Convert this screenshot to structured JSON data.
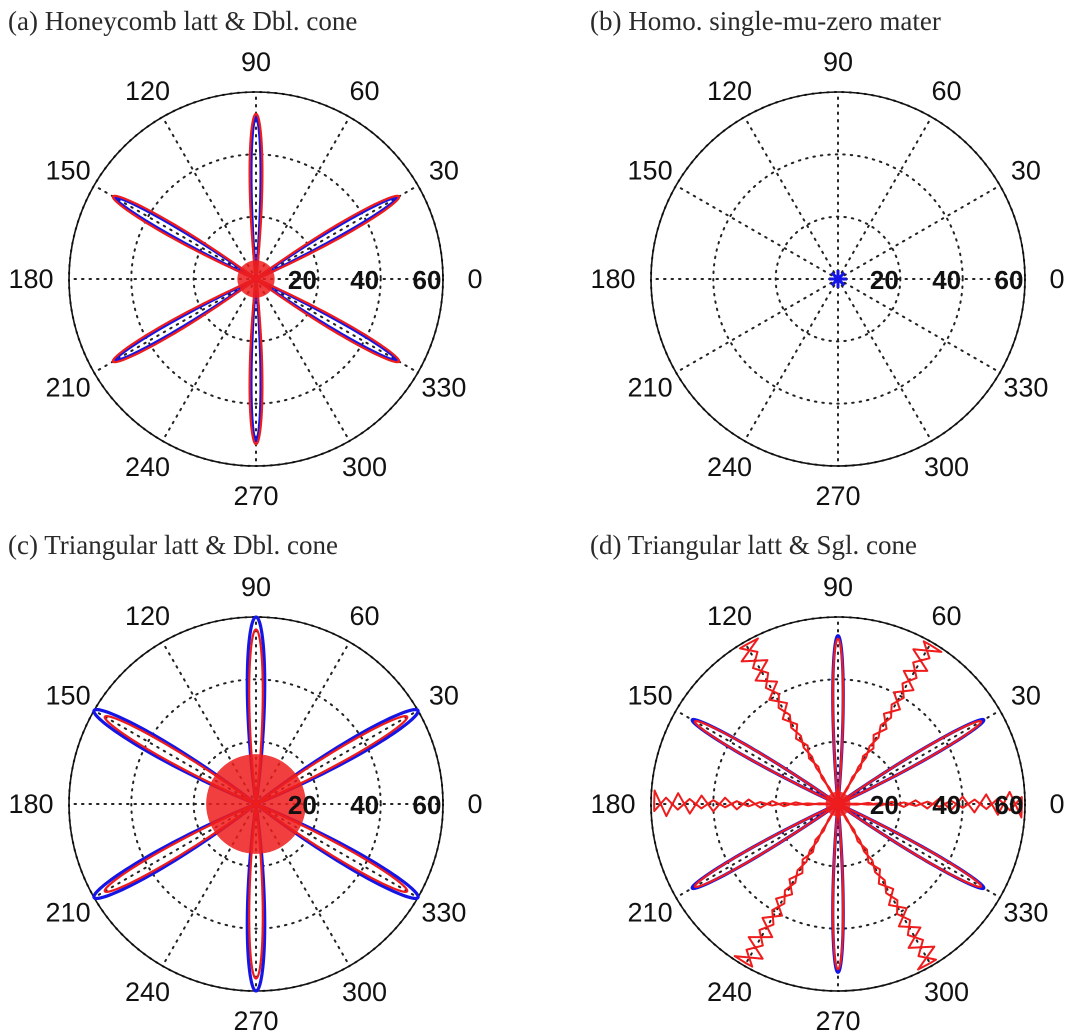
{
  "chart_data": [
    {
      "type": "polar",
      "title": "(a) Honeycomb latt & Dbl. cone",
      "angle_ticks": [
        "0",
        "30",
        "60",
        "90",
        "120",
        "150",
        "180",
        "210",
        "240",
        "270",
        "300",
        "330"
      ],
      "radial_ticks": [
        "20",
        "40",
        "60"
      ],
      "rmax": 60,
      "series": [
        {
          "color": "#1515e6",
          "lobe_angles": [
            30,
            90,
            150,
            210,
            270,
            330
          ],
          "peak": 52,
          "lobe_width_deg": 4
        },
        {
          "color": "#ee1c1c",
          "lobe_angles": [
            30,
            90,
            150,
            210,
            270,
            330
          ],
          "peak": 53,
          "lobe_width_deg": 5,
          "core_radius": 6
        }
      ]
    },
    {
      "type": "polar",
      "title": "(b) Homo. single-mu-zero mater",
      "angle_ticks": [
        "0",
        "30",
        "60",
        "90",
        "120",
        "150",
        "180",
        "210",
        "240",
        "270",
        "300",
        "330"
      ],
      "radial_ticks": [
        "20",
        "40",
        "60"
      ],
      "rmax": 60,
      "series": [
        {
          "color": "#1515e6",
          "marker": "star",
          "value": 2
        }
      ]
    },
    {
      "type": "polar",
      "title": "(c) Triangular latt & Dbl. cone",
      "angle_ticks": [
        "0",
        "30",
        "60",
        "90",
        "120",
        "150",
        "180",
        "210",
        "240",
        "270",
        "300",
        "330"
      ],
      "radial_ticks": [
        "20",
        "40",
        "60"
      ],
      "rmax": 60,
      "series": [
        {
          "color": "#1515e6",
          "lobe_angles": [
            30,
            90,
            150,
            210,
            270,
            330
          ],
          "peak": 60,
          "lobe_width_deg": 6
        },
        {
          "color": "#ee1c1c",
          "lobe_angles": [
            30,
            90,
            150,
            210,
            270,
            330
          ],
          "peak": 56,
          "lobe_width_deg": 5,
          "core_radius": 16
        }
      ]
    },
    {
      "type": "polar",
      "title": "(d) Triangular latt & Sgl. cone",
      "angle_ticks": [
        "0",
        "30",
        "60",
        "90",
        "120",
        "150",
        "180",
        "210",
        "240",
        "270",
        "300",
        "330"
      ],
      "radial_ticks": [
        "20",
        "40",
        "60"
      ],
      "rmax": 60,
      "series": [
        {
          "color": "#1515e6",
          "lobe_angles": [
            30,
            90,
            150,
            210,
            270,
            330
          ],
          "peak": 54,
          "lobe_width_deg": 4
        },
        {
          "color": "#ee1c1c",
          "lobe_angles": [
            30,
            90,
            150,
            210,
            270,
            330
          ],
          "peak": 53,
          "lobe_width_deg": 4,
          "spike_angles": [
            0,
            60,
            120,
            180,
            240,
            300
          ],
          "spike_peak": 59,
          "core_radius": 4
        }
      ]
    }
  ]
}
